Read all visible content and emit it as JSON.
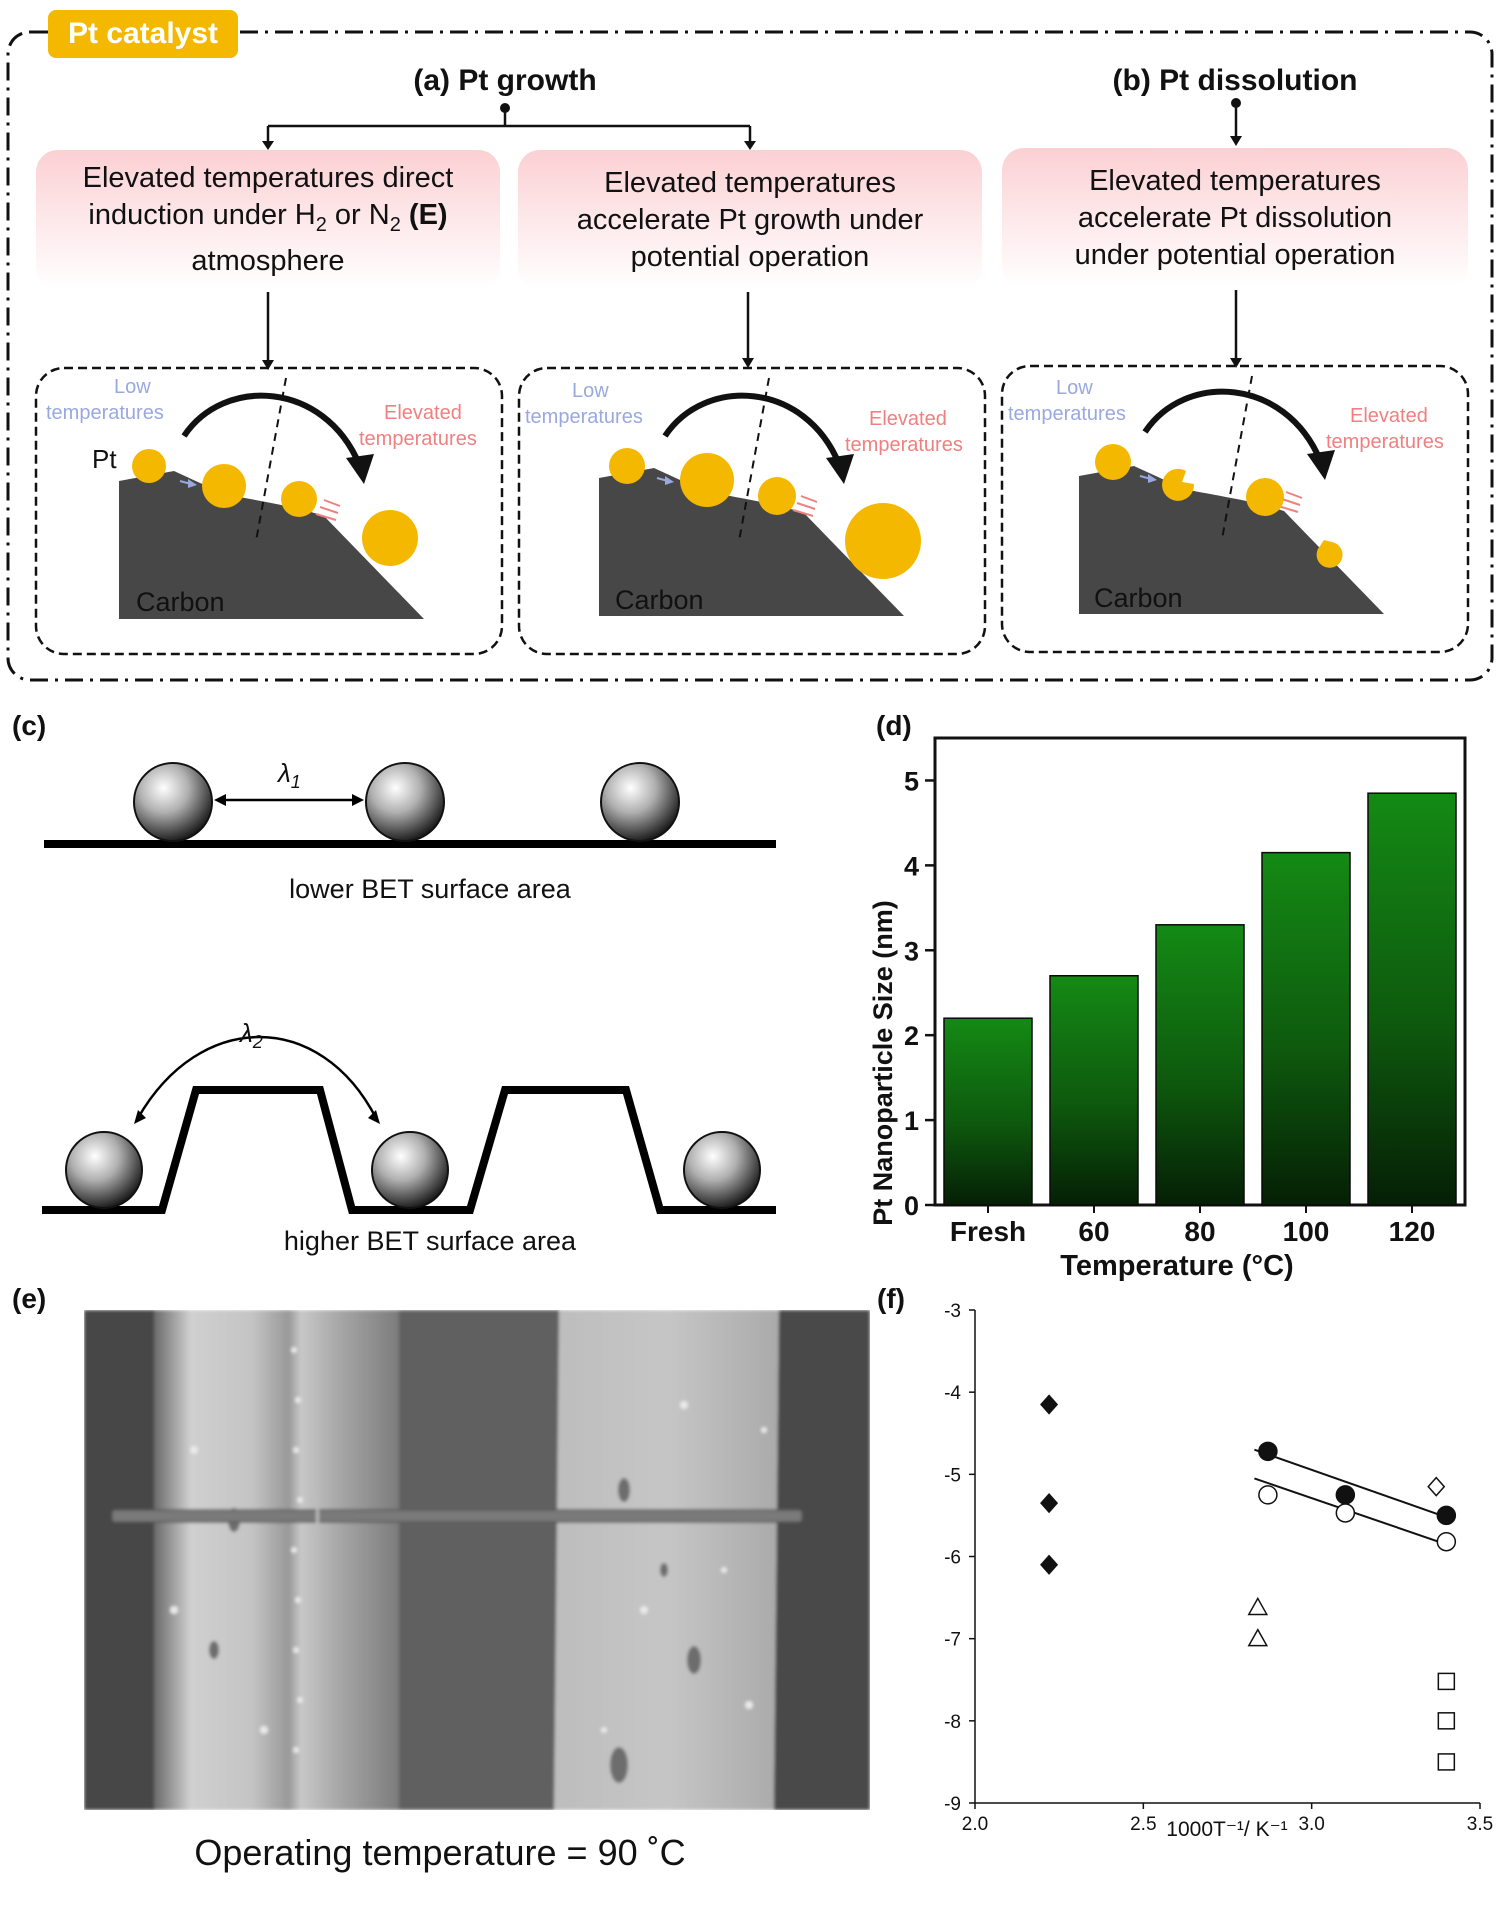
{
  "badge": "Pt catalyst",
  "panel_a": {
    "title": "(a) Pt growth",
    "box1_line1": "Elevated temperatures direct",
    "box1_line2_pre": "induction under H",
    "box1_sub1": "2",
    "box1_line2_mid": " or N",
    "box1_sub2": "2",
    "box1_bold": "(E)",
    "box1_line3": "atmosphere",
    "box2": [
      "Elevated temperatures",
      "accelerate Pt growth under",
      "potential operation"
    ]
  },
  "panel_b": {
    "title": "(b) Pt dissolution",
    "box": [
      "Elevated temperatures",
      "accelerate Pt dissolution",
      "under potential operation"
    ]
  },
  "schematic": {
    "low": [
      "Low",
      "temperatures"
    ],
    "high": [
      "Elevated",
      "temperatures"
    ],
    "pt": "Pt",
    "carbon": "Carbon"
  },
  "colors": {
    "badge": "#F5B800",
    "particle": "#F5B800",
    "carbon": "#474747",
    "low_text": "#9aa8e0",
    "high_text": "#f08080",
    "bar": "#148a14"
  },
  "panel_c": {
    "label": "(c)",
    "lambda1": "λ",
    "lambda1_sub": "1",
    "lambda2": "λ",
    "lambda2_sub": "2",
    "caption1": "lower BET surface area",
    "caption2": "higher BET surface area"
  },
  "panel_d": {
    "label": "(d)",
    "chart_data": {
      "type": "bar",
      "categories": [
        "Fresh",
        "60",
        "80",
        "100",
        "120"
      ],
      "values": [
        2.2,
        2.7,
        3.3,
        4.15,
        4.85
      ],
      "xlabel": "Temperature (°C)",
      "ylabel": "Pt Nanoparticle Size (nm)",
      "ylim": [
        0,
        5.5
      ],
      "yticks": [
        "0",
        "1",
        "2",
        "3",
        "4",
        "5"
      ]
    }
  },
  "panel_e": {
    "label": "(e)",
    "caption": "Operating temperature = 90 ˚C"
  },
  "panel_f": {
    "label": "(f)",
    "chart_data": {
      "type": "scatter",
      "xlabel": "1000T⁻¹/ K⁻¹",
      "xlim": [
        2.0,
        3.5
      ],
      "ylim": [
        -9,
        -3
      ],
      "xticks": [
        "2.0",
        "2.5",
        "3.0",
        "3.5"
      ],
      "yticks": [
        "-3",
        "-4",
        "-5",
        "-6",
        "-7",
        "-8",
        "-9"
      ],
      "series": [
        {
          "marker": "diamond-filled",
          "points": [
            [
              2.22,
              -4.15
            ],
            [
              2.22,
              -5.35
            ],
            [
              2.22,
              -6.1
            ]
          ]
        },
        {
          "marker": "diamond-open",
          "points": [
            [
              3.37,
              -5.15
            ]
          ]
        },
        {
          "marker": "circle-filled",
          "points": [
            [
              2.87,
              -4.72
            ],
            [
              3.1,
              -5.25
            ],
            [
              3.4,
              -5.5
            ]
          ],
          "fit": [
            [
              2.83,
              -4.7
            ],
            [
              3.42,
              -5.55
            ]
          ]
        },
        {
          "marker": "circle-open",
          "points": [
            [
              2.87,
              -5.25
            ],
            [
              3.1,
              -5.47
            ],
            [
              3.4,
              -5.82
            ]
          ],
          "fit": [
            [
              2.83,
              -5.05
            ],
            [
              3.42,
              -5.88
            ]
          ]
        },
        {
          "marker": "triangle-open",
          "points": [
            [
              2.84,
              -6.62
            ],
            [
              2.84,
              -7.0
            ]
          ]
        },
        {
          "marker": "square-open",
          "points": [
            [
              3.4,
              -7.52
            ],
            [
              3.4,
              -8.0
            ],
            [
              3.4,
              -8.5
            ]
          ]
        }
      ]
    }
  }
}
